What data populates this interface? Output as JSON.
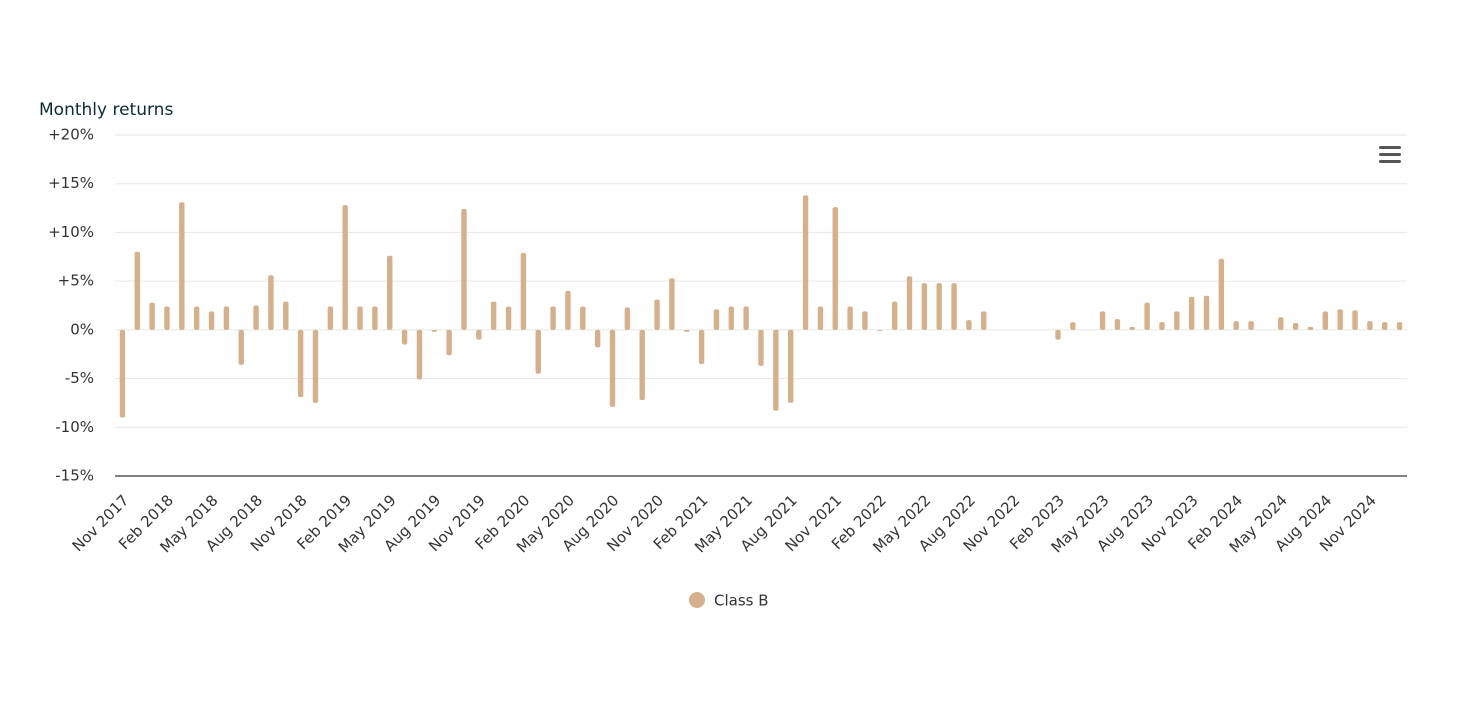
{
  "chart_data": {
    "type": "bar",
    "title": "Monthly returns",
    "categories": [
      "Nov 2017",
      null,
      null,
      "Feb 2018",
      null,
      null,
      "May 2018",
      null,
      null,
      "Aug 2018",
      null,
      null,
      "Nov 2018",
      null,
      null,
      "Feb 2019",
      null,
      null,
      "May 2019",
      null,
      null,
      "Aug 2019",
      null,
      null,
      "Nov 2019",
      null,
      null,
      "Feb 2020",
      null,
      null,
      "May 2020",
      null,
      null,
      "Aug 2020",
      null,
      null,
      "Nov 2020",
      null,
      null,
      "Feb 2021",
      null,
      null,
      "May 2021",
      null,
      null,
      "Aug 2021",
      null,
      null,
      "Nov 2021",
      null,
      null,
      "Feb 2022",
      null,
      null,
      "May 2022",
      null,
      null,
      "Aug 2022",
      null,
      null,
      "Nov 2022",
      null,
      null,
      "Feb 2023",
      null,
      null,
      "May 2023",
      null,
      null,
      "Aug 2023",
      null,
      null,
      "Nov 2023",
      null,
      null,
      "Feb 2024",
      null,
      null,
      "May 2024",
      null,
      null,
      "Aug 2024",
      null,
      null,
      "Nov 2024",
      null,
      null
    ],
    "series": [
      {
        "name": "Class B",
        "color": "#d4b08c",
        "values": [
          -9.0,
          8.0,
          2.8,
          2.4,
          13.1,
          2.4,
          1.9,
          2.4,
          -3.6,
          2.5,
          5.6,
          2.9,
          -6.9,
          -7.5,
          2.4,
          12.8,
          2.4,
          2.4,
          7.6,
          -1.5,
          -5.1,
          -0.2,
          -2.6,
          12.4,
          -1.0,
          2.9,
          2.4,
          7.9,
          -4.5,
          2.4,
          4.0,
          2.4,
          -1.8,
          -7.9,
          2.3,
          -7.2,
          3.1,
          5.3,
          -0.2,
          -3.5,
          2.1,
          2.4,
          2.4,
          -3.7,
          -8.3,
          -7.5,
          13.8,
          2.4,
          12.6,
          2.4,
          1.9,
          -0.1,
          2.9,
          5.5,
          4.8,
          4.8,
          4.8,
          1.0,
          1.9,
          null,
          null,
          null,
          null,
          -1.0,
          0.8,
          null,
          1.9,
          1.1,
          0.3,
          2.8,
          0.8,
          1.9,
          3.4,
          3.5,
          7.3,
          0.9,
          0.9,
          null,
          1.3,
          0.7,
          0.3,
          1.9,
          2.1,
          2.0,
          0.9,
          0.8,
          0.8
        ]
      }
    ],
    "ylim": [
      -15,
      20
    ],
    "yticks": [
      {
        "value": 20,
        "label": "+20%"
      },
      {
        "value": 15,
        "label": "+15%"
      },
      {
        "value": 10,
        "label": "+10%"
      },
      {
        "value": 5,
        "label": "+5%"
      },
      {
        "value": 0,
        "label": "0%"
      },
      {
        "value": -5,
        "label": "-5%"
      },
      {
        "value": -10,
        "label": "-10%"
      },
      {
        "value": -15,
        "label": "-15%"
      }
    ],
    "grid": true,
    "legend": "bottom"
  }
}
